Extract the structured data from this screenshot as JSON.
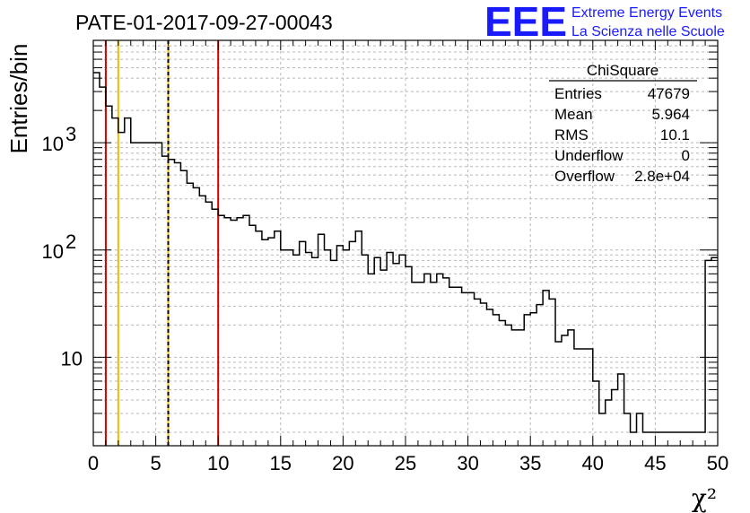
{
  "header": {
    "run_title": "PATE-01-2017-09-27-00043",
    "logo_letters": "EEE",
    "logo_line1": "Extreme Energy Events",
    "logo_line2": "La Scienza nelle Scuole",
    "logo_color": "#1a1aff"
  },
  "stats_box": {
    "title": "ChiSquare",
    "rows": [
      {
        "label": "Entries",
        "value": "47679"
      },
      {
        "label": "Mean",
        "value": "5.964"
      },
      {
        "label": "RMS",
        "value": "10.1"
      },
      {
        "label": "Underflow",
        "value": "0"
      },
      {
        "label": "Overflow",
        "value": "2.8e+04"
      }
    ]
  },
  "chart_data": {
    "type": "histogram",
    "title": "PATE-01-2017-09-27-00043",
    "xlabel": "χ²",
    "ylabel": "Entries/bin",
    "xlim": [
      0,
      50
    ],
    "ylim": [
      1.5,
      9000
    ],
    "yscale": "log",
    "grid": true,
    "bin_width": 0.5,
    "x_ticks": [
      0,
      5,
      10,
      15,
      20,
      25,
      30,
      35,
      40,
      45,
      50
    ],
    "y_ticks": [
      {
        "value": 10,
        "label": "10",
        "exp": ""
      },
      {
        "value": 100,
        "label": "10",
        "exp": "2"
      },
      {
        "value": 1000,
        "label": "10",
        "exp": "3"
      }
    ],
    "line_color": "#000000",
    "values": [
      4500,
      3300,
      2200,
      1700,
      1250,
      1700,
      1000,
      1000,
      1000,
      1000,
      1000,
      750,
      700,
      650,
      550,
      420,
      380,
      320,
      280,
      240,
      210,
      200,
      190,
      200,
      210,
      170,
      150,
      125,
      130,
      150,
      100,
      100,
      90,
      120,
      95,
      85,
      140,
      100,
      80,
      110,
      100,
      120,
      150,
      90,
      60,
      85,
      65,
      95,
      75,
      90,
      70,
      50,
      50,
      60,
      50,
      60,
      55,
      45,
      45,
      40,
      40,
      35,
      32,
      28,
      25,
      22,
      20,
      18,
      18,
      25,
      26,
      31,
      42,
      35,
      14,
      16,
      18,
      12,
      12,
      12,
      6,
      3,
      4,
      5,
      7,
      3,
      2,
      3,
      2,
      2,
      2,
      2,
      2,
      2,
      2,
      2,
      2,
      2,
      80,
      85
    ],
    "vertical_lines": [
      {
        "x": 1,
        "color": "#d40000",
        "style": "solid"
      },
      {
        "x": 2,
        "color": "#f5b800",
        "style": "solid"
      },
      {
        "x": 6,
        "color": "#f5b800",
        "style": "solid"
      },
      {
        "x": 6,
        "color": "#000000",
        "style": "dashed"
      },
      {
        "x": 10,
        "color": "#d40000",
        "style": "solid"
      }
    ]
  }
}
